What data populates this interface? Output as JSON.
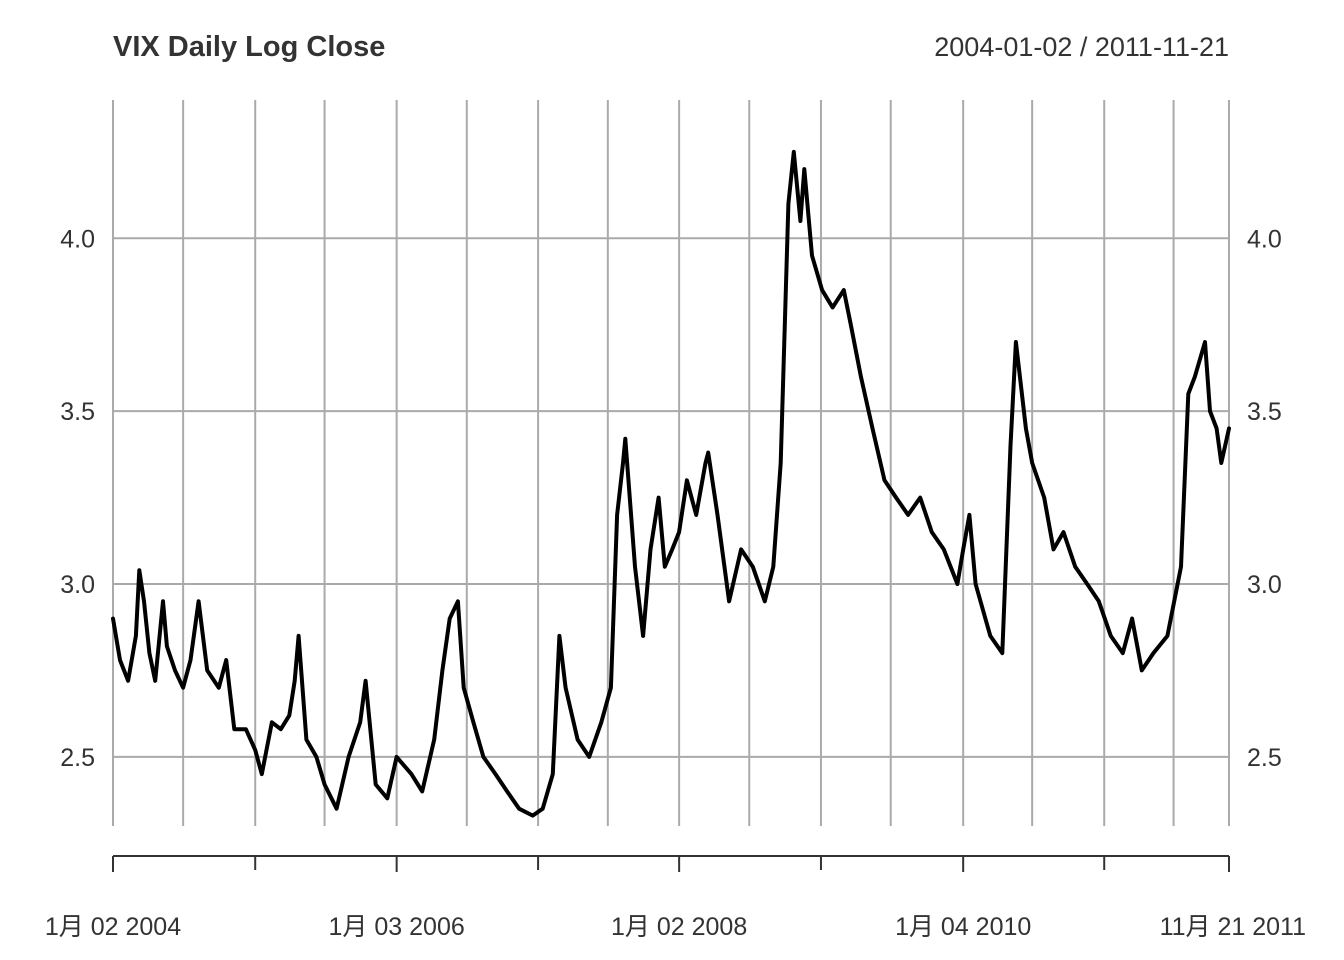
{
  "chart_data": {
    "type": "line",
    "title": "VIX Daily Log Close",
    "date_range": "2004-01-02 / 2011-11-21",
    "xlabel": "",
    "ylabel": "",
    "ylim": [
      2.3,
      4.4
    ],
    "y_ticks": [
      2.5,
      3.0,
      3.5,
      4.0
    ],
    "y_tick_labels": [
      "2.5",
      "3.0",
      "3.5",
      "4.0"
    ],
    "x_ticks": [
      {
        "date": "2004-01-02",
        "label": "1月 02 2004"
      },
      {
        "date": "2006-01-03",
        "label": "1月 03 2006"
      },
      {
        "date": "2008-01-02",
        "label": "1月 02 2008"
      },
      {
        "date": "2010-01-04",
        "label": "1月 04 2010"
      },
      {
        "date": "2011-11-21",
        "label": "11月 21 2011"
      }
    ],
    "x_minor_ticks": [
      "2005-01-03",
      "2007-01-03",
      "2009-01-02",
      "2011-01-03"
    ],
    "x_grid_dates": [
      "2004-01-02",
      "2004-07-01",
      "2005-01-03",
      "2005-07-01",
      "2006-01-03",
      "2006-07-03",
      "2007-01-03",
      "2007-07-02",
      "2008-01-02",
      "2008-07-01",
      "2009-01-02",
      "2009-07-01",
      "2010-01-04",
      "2010-07-01",
      "2011-01-03",
      "2011-07-01",
      "2011-11-21"
    ],
    "grid": true,
    "line_color": "#000000",
    "grid_color": "#aaaaaa",
    "series": [
      {
        "x": [
          "2004-01-02",
          "2004-01-20",
          "2004-02-10",
          "2004-03-01",
          "2004-03-10",
          "2004-03-22",
          "2004-04-05",
          "2004-04-20",
          "2004-05-10",
          "2004-05-20",
          "2004-06-10",
          "2004-07-01",
          "2004-07-20",
          "2004-08-10",
          "2004-09-01",
          "2004-10-01",
          "2004-10-20",
          "2004-11-10",
          "2004-12-10",
          "2005-01-03",
          "2005-01-20",
          "2005-02-15",
          "2005-03-10",
          "2005-04-01",
          "2005-04-15",
          "2005-04-25",
          "2005-05-15",
          "2005-06-10",
          "2005-07-01",
          "2005-08-01",
          "2005-09-01",
          "2005-10-01",
          "2005-10-15",
          "2005-11-10",
          "2005-12-10",
          "2006-01-03",
          "2006-02-10",
          "2006-03-10",
          "2006-04-10",
          "2006-05-01",
          "2006-05-20",
          "2006-06-10",
          "2006-06-25",
          "2006-07-20",
          "2006-08-15",
          "2006-09-15",
          "2006-10-15",
          "2006-11-15",
          "2006-12-20",
          "2007-01-15",
          "2007-02-10",
          "2007-02-27",
          "2007-03-15",
          "2007-04-15",
          "2007-05-15",
          "2007-06-15",
          "2007-07-10",
          "2007-07-26",
          "2007-08-10",
          "2007-08-16",
          "2007-09-10",
          "2007-10-01",
          "2007-10-20",
          "2007-11-10",
          "2007-11-26",
          "2007-12-15",
          "2008-01-02",
          "2008-01-22",
          "2008-02-15",
          "2008-03-10",
          "2008-03-17",
          "2008-04-10",
          "2008-05-10",
          "2008-06-10",
          "2008-07-10",
          "2008-08-10",
          "2008-09-01",
          "2008-09-20",
          "2008-10-10",
          "2008-10-24",
          "2008-11-10",
          "2008-11-20",
          "2008-12-10",
          "2009-01-05",
          "2009-02-01",
          "2009-03-02",
          "2009-03-20",
          "2009-04-15",
          "2009-05-15",
          "2009-06-15",
          "2009-07-15",
          "2009-08-15",
          "2009-09-15",
          "2009-10-15",
          "2009-11-15",
          "2009-12-20",
          "2010-01-04",
          "2010-01-20",
          "2010-02-05",
          "2010-03-15",
          "2010-04-15",
          "2010-05-06",
          "2010-05-20",
          "2010-06-15",
          "2010-07-01",
          "2010-08-01",
          "2010-08-25",
          "2010-09-20",
          "2010-10-20",
          "2010-11-20",
          "2010-12-20",
          "2011-01-20",
          "2011-02-20",
          "2011-03-16",
          "2011-04-10",
          "2011-05-10",
          "2011-06-15",
          "2011-07-20",
          "2011-08-08",
          "2011-08-25",
          "2011-09-20",
          "2011-10-03",
          "2011-10-20",
          "2011-11-01",
          "2011-11-21"
        ],
        "y": [
          2.9,
          2.78,
          2.72,
          2.85,
          3.04,
          2.95,
          2.8,
          2.72,
          2.95,
          2.82,
          2.75,
          2.7,
          2.78,
          2.95,
          2.75,
          2.7,
          2.78,
          2.58,
          2.58,
          2.52,
          2.45,
          2.6,
          2.58,
          2.62,
          2.72,
          2.85,
          2.55,
          2.5,
          2.42,
          2.35,
          2.5,
          2.6,
          2.72,
          2.42,
          2.38,
          2.5,
          2.45,
          2.4,
          2.55,
          2.75,
          2.9,
          2.95,
          2.7,
          2.6,
          2.5,
          2.45,
          2.4,
          2.35,
          2.33,
          2.35,
          2.45,
          2.85,
          2.7,
          2.55,
          2.5,
          2.6,
          2.7,
          3.2,
          3.35,
          3.42,
          3.05,
          2.85,
          3.1,
          3.25,
          3.05,
          3.1,
          3.15,
          3.3,
          3.2,
          3.35,
          3.38,
          3.2,
          2.95,
          3.1,
          3.05,
          2.95,
          3.05,
          3.35,
          4.1,
          4.25,
          4.05,
          4.2,
          3.95,
          3.85,
          3.8,
          3.85,
          3.75,
          3.6,
          3.45,
          3.3,
          3.25,
          3.2,
          3.25,
          3.15,
          3.1,
          3.0,
          3.1,
          3.2,
          3.0,
          2.85,
          2.8,
          3.4,
          3.7,
          3.45,
          3.35,
          3.25,
          3.1,
          3.15,
          3.05,
          3.0,
          2.95,
          2.85,
          2.8,
          2.9,
          2.75,
          2.8,
          2.85,
          3.05,
          3.55,
          3.6,
          3.7,
          3.5,
          3.45,
          3.35,
          3.45
        ]
      }
    ]
  }
}
